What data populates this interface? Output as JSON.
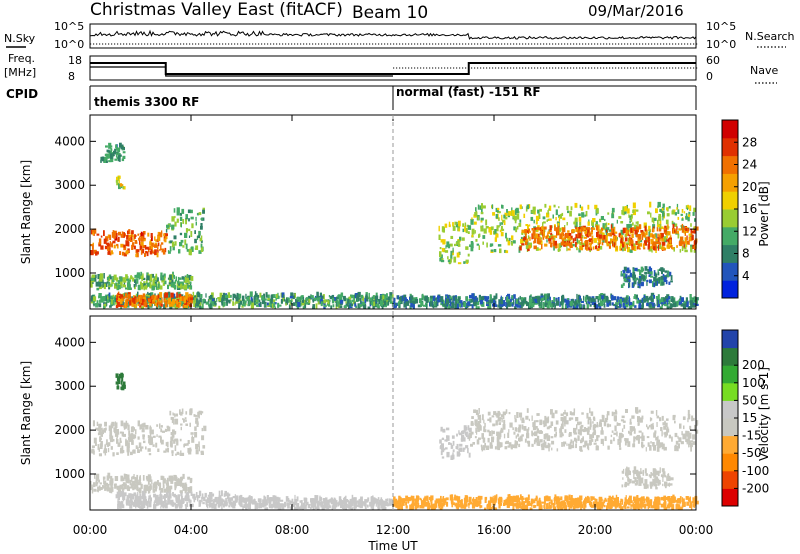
{
  "header": {
    "title": "Christmas Valley East (fitACF)",
    "beam": "Beam 10",
    "date": "09/Mar/2016"
  },
  "strips": {
    "nsky_label": "N.Sky",
    "nsearch_label": "N.Search",
    "noise_ticks": [
      "10^5",
      "10^0"
    ],
    "freq_label": "Freq.",
    "freq_unit": "[MHz]",
    "freq_ticks": [
      "18",
      "8"
    ],
    "nave_label": "Nave",
    "nave_ticks": [
      "60",
      "0"
    ],
    "cpid_label": "CPID",
    "modes": [
      {
        "name": "themis 3300 RF",
        "start_hour": 0
      },
      {
        "name": "normal (fast) -151 RF",
        "start_hour": 12
      }
    ]
  },
  "colors": {
    "power": [
      "#0022dd",
      "#2255bb",
      "#2f7f66",
      "#44aa66",
      "#99cc33",
      "#f0d000",
      "#f5a000",
      "#f07000",
      "#e03000",
      "#d00000"
    ],
    "velocity": [
      "#dd0000",
      "#ee4400",
      "#ff8800",
      "#ffaa33",
      "#c8c8c0",
      "#c8c8c8",
      "#77dd22",
      "#33aa33",
      "#2d7a3a",
      "#2244aa"
    ]
  },
  "chart_data": [
    {
      "type": "heatmap",
      "name": "power",
      "ylabel": "Slant Range [km]",
      "ylim": [
        180,
        4600
      ],
      "yticks": [
        1000,
        2000,
        3000,
        4000
      ],
      "xlim": [
        0,
        24
      ],
      "colorbar_label": "Power [dB]",
      "colorbar_ticks": [
        4,
        8,
        12,
        16,
        20,
        24,
        28
      ],
      "colorbar_range": [
        0,
        32
      ],
      "scatter_regions": [
        {
          "t0": 0.0,
          "t1": 3.0,
          "r0": 1350,
          "r1": 1900,
          "v": 25
        },
        {
          "t0": 3.0,
          "t1": 4.5,
          "r0": 1400,
          "r1": 2400,
          "v": 12
        },
        {
          "t0": 0.4,
          "t1": 1.3,
          "r0": 3500,
          "r1": 3900,
          "v": 10
        },
        {
          "t0": 1.0,
          "t1": 1.3,
          "r0": 2900,
          "r1": 3150,
          "v": 16
        },
        {
          "t0": 0.0,
          "t1": 4.0,
          "r0": 600,
          "r1": 900,
          "v": 12
        },
        {
          "t0": 0.0,
          "t1": 12.0,
          "r0": 180,
          "r1": 450,
          "v": 10
        },
        {
          "t0": 1.0,
          "t1": 4.0,
          "r0": 200,
          "r1": 450,
          "v": 24
        },
        {
          "t0": 12.0,
          "t1": 24.0,
          "r0": 180,
          "r1": 420,
          "v": 8
        },
        {
          "t0": 13.8,
          "t1": 15.0,
          "r0": 1200,
          "r1": 2100,
          "v": 14
        },
        {
          "t0": 15.0,
          "t1": 24.0,
          "r0": 1450,
          "r1": 2500,
          "v": 14
        },
        {
          "t0": 17.0,
          "t1": 24.0,
          "r0": 1500,
          "r1": 2000,
          "v": 24
        },
        {
          "t0": 21.0,
          "t1": 23.0,
          "r0": 650,
          "r1": 1050,
          "v": 8
        }
      ]
    },
    {
      "type": "heatmap",
      "name": "velocity",
      "ylabel": "Slant Range [km]",
      "ylim": [
        180,
        4600
      ],
      "yticks": [
        1000,
        2000,
        3000,
        4000
      ],
      "xlabel": "Time UT",
      "xlim": [
        0,
        24
      ],
      "xticks": [
        "00:00",
        "04:00",
        "08:00",
        "12:00",
        "16:00",
        "20:00",
        "00:00"
      ],
      "colorbar_label": "Velocity [m s-1]",
      "colorbar_ticks": [
        -200,
        -100,
        -50,
        -15,
        15,
        50,
        100,
        200
      ],
      "scatter_regions": [
        {
          "t0": 0.0,
          "t1": 3.0,
          "r0": 1400,
          "r1": 2100,
          "v": 0
        },
        {
          "t0": 3.0,
          "t1": 4.5,
          "r0": 1400,
          "r1": 2400,
          "v": 0
        },
        {
          "t0": 1.0,
          "t1": 1.3,
          "r0": 2900,
          "r1": 3200,
          "v": 220
        },
        {
          "t0": 0.0,
          "t1": 4.0,
          "r0": 550,
          "r1": 900,
          "v": 0
        },
        {
          "t0": 1.0,
          "t1": 6.0,
          "r0": 200,
          "r1": 500,
          "v": 30
        },
        {
          "t0": 6.0,
          "t1": 12.0,
          "r0": 180,
          "r1": 400,
          "v": 20
        },
        {
          "t0": 12.0,
          "t1": 24.0,
          "r0": 180,
          "r1": 420,
          "v": -30
        },
        {
          "t0": 13.8,
          "t1": 15.0,
          "r0": 1300,
          "r1": 2000,
          "v": 20
        },
        {
          "t0": 15.0,
          "t1": 24.0,
          "r0": 1500,
          "r1": 2400,
          "v": 0
        },
        {
          "t0": 21.0,
          "t1": 23.0,
          "r0": 650,
          "r1": 1050,
          "v": 0
        }
      ]
    }
  ]
}
